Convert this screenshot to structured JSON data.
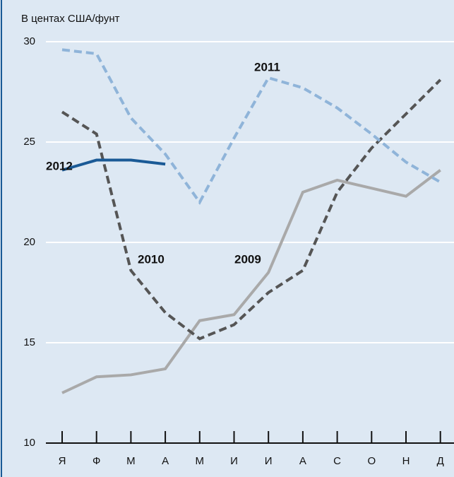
{
  "chart_data": {
    "type": "line",
    "y_label": "В центах США/фунт",
    "categories": [
      "Я",
      "Ф",
      "М",
      "А",
      "М",
      "И",
      "И",
      "А",
      "С",
      "О",
      "Н",
      "Д"
    ],
    "series": [
      {
        "name": "2009",
        "color": "#a9a9a9",
        "dashed": false,
        "values": [
          12.5,
          13.3,
          13.4,
          13.7,
          16.1,
          16.4,
          18.5,
          22.5,
          23.1,
          22.7,
          22.3,
          23.6
        ]
      },
      {
        "name": "2010",
        "color": "#555555",
        "dashed": true,
        "values": [
          26.5,
          25.4,
          18.6,
          16.5,
          15.2,
          15.9,
          17.5,
          18.6,
          22.5,
          24.7,
          26.4,
          28.1
        ]
      },
      {
        "name": "2011",
        "color": "#8fb4d9",
        "dashed": true,
        "values": [
          29.6,
          29.4,
          26.2,
          24.4,
          22.0,
          25.2,
          28.2,
          27.7,
          26.7,
          25.4,
          24.0,
          23.0
        ]
      },
      {
        "name": "2012",
        "color": "#1a5a96",
        "dashed": false,
        "values": [
          23.6,
          24.1,
          24.1,
          23.9,
          null,
          null,
          null,
          null,
          null,
          null,
          null,
          null
        ]
      }
    ],
    "ylim": [
      10,
      30
    ],
    "yticks": [
      10,
      15,
      20,
      25,
      30
    ],
    "grid": true
  }
}
